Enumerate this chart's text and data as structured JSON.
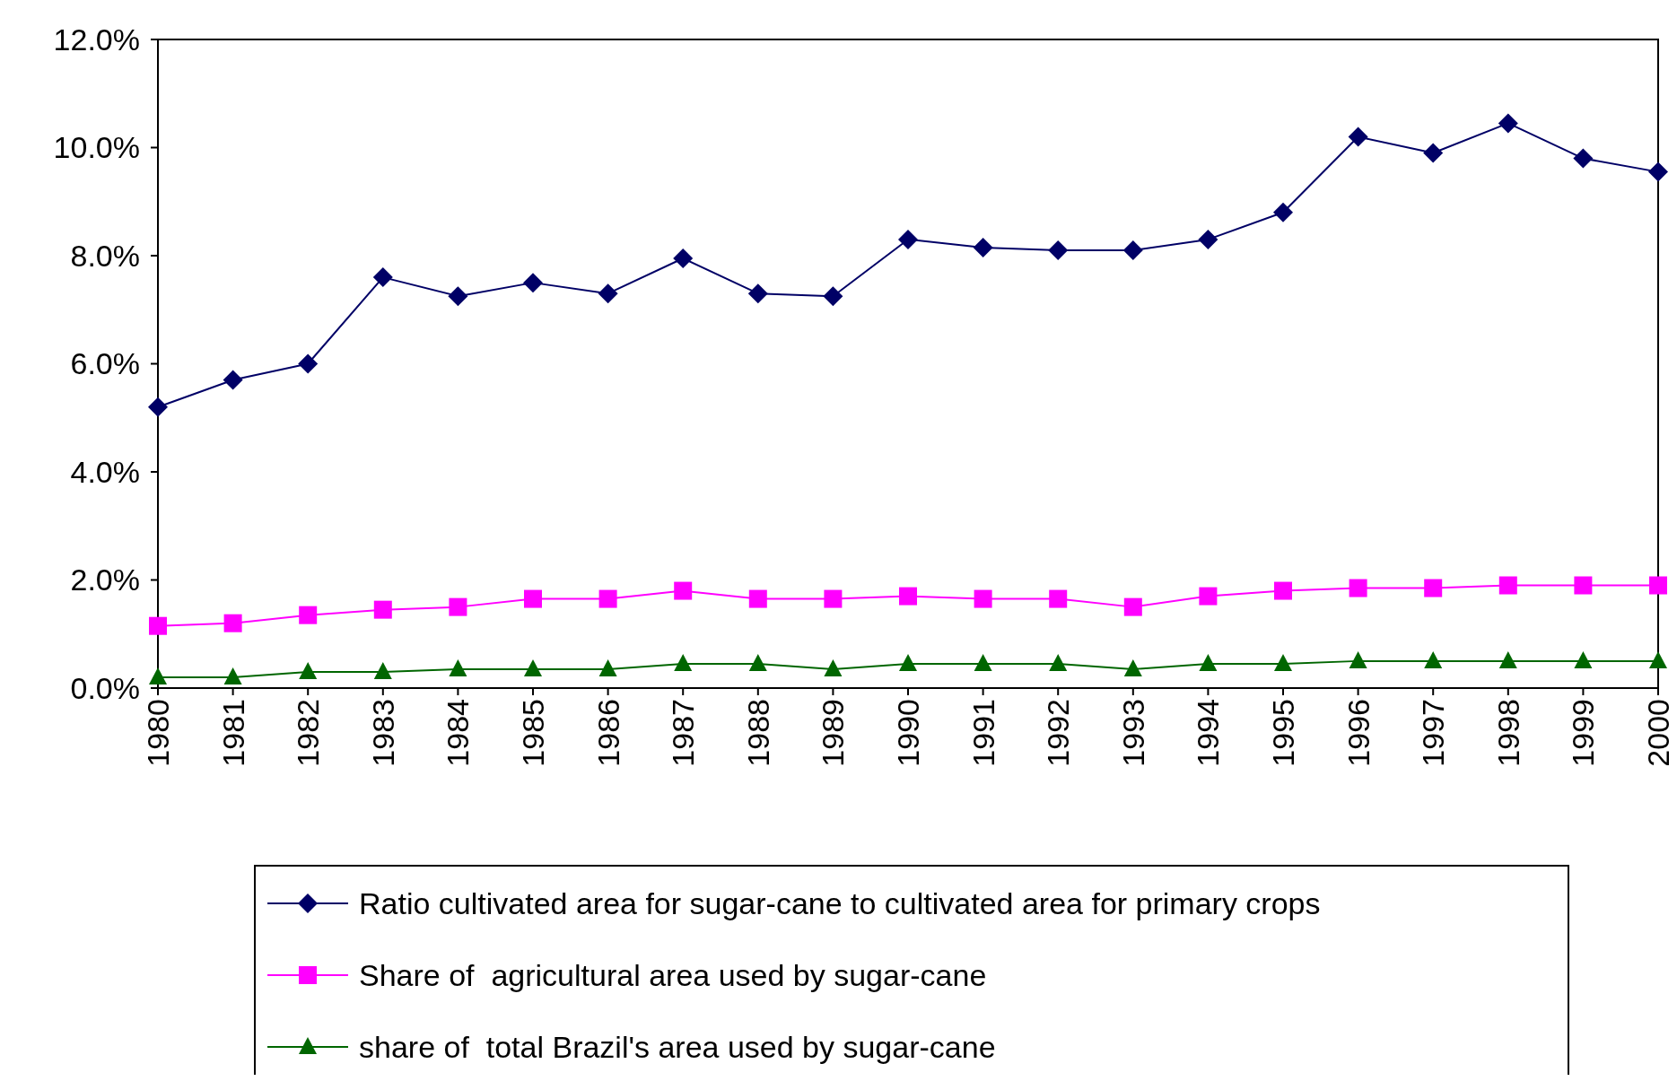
{
  "chart_data": {
    "type": "line",
    "categories": [
      "1980",
      "1981",
      "1982",
      "1983",
      "1984",
      "1985",
      "1986",
      "1987",
      "1988",
      "1989",
      "1990",
      "1991",
      "1992",
      "1993",
      "1994",
      "1995",
      "1996",
      "1997",
      "1998",
      "1999",
      "2000"
    ],
    "ylim": [
      0,
      12
    ],
    "yticks": [
      {
        "value": 0,
        "label": "0.0%"
      },
      {
        "value": 2,
        "label": "2.0%"
      },
      {
        "value": 4,
        "label": "4.0%"
      },
      {
        "value": 6,
        "label": "6.0%"
      },
      {
        "value": 8,
        "label": "8.0%"
      },
      {
        "value": 10,
        "label": "10.0%"
      },
      {
        "value": 12,
        "label": "12.0%"
      }
    ],
    "legend": "bottom",
    "grid": false,
    "series": [
      {
        "name": "Ratio cultivated area for sugar-cane to cultivated area for primary crops",
        "color": "#000066",
        "marker": "diamond",
        "values": [
          5.2,
          5.7,
          6.0,
          7.6,
          7.25,
          7.5,
          7.3,
          7.95,
          7.3,
          7.25,
          8.3,
          8.15,
          8.1,
          8.1,
          8.3,
          8.8,
          10.2,
          9.9,
          10.45,
          9.8,
          9.55
        ]
      },
      {
        "name": "Share of  agricultural area used by sugar-cane",
        "color": "#ff00ff",
        "marker": "square",
        "values": [
          1.15,
          1.2,
          1.35,
          1.45,
          1.5,
          1.65,
          1.65,
          1.8,
          1.65,
          1.65,
          1.7,
          1.65,
          1.65,
          1.5,
          1.7,
          1.8,
          1.85,
          1.85,
          1.9,
          1.9,
          1.9
        ]
      },
      {
        "name": "share of  total Brazil's area used by sugar-cane",
        "color": "#006600",
        "marker": "triangle",
        "values": [
          0.2,
          0.2,
          0.3,
          0.3,
          0.35,
          0.35,
          0.35,
          0.45,
          0.45,
          0.35,
          0.45,
          0.45,
          0.45,
          0.35,
          0.45,
          0.45,
          0.5,
          0.5,
          0.5,
          0.5,
          0.5
        ]
      }
    ]
  }
}
